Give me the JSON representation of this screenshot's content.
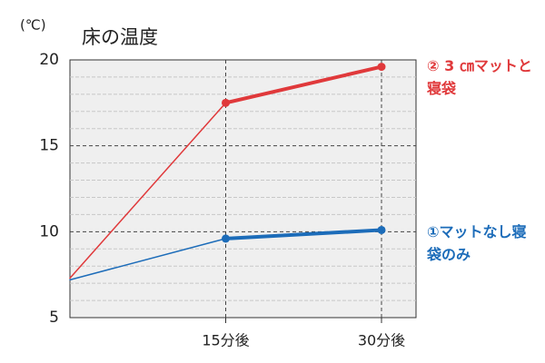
{
  "chart_data": {
    "type": "line",
    "title": "床の温度",
    "y_unit": "(℃)",
    "categories": [
      null,
      "15分後",
      "30分後"
    ],
    "series": [
      {
        "name": "② 3 ㎝マットと寝袋",
        "color": "#e0393b",
        "values": [
          7.3,
          17.5,
          19.6
        ]
      },
      {
        "name": "①マットなし寝袋のみ",
        "color": "#1c6cb9",
        "values": [
          7.2,
          9.6,
          10.1
        ]
      }
    ],
    "ylim": [
      5,
      20
    ],
    "yticks": [
      5,
      10,
      15,
      20
    ],
    "grid": true
  }
}
